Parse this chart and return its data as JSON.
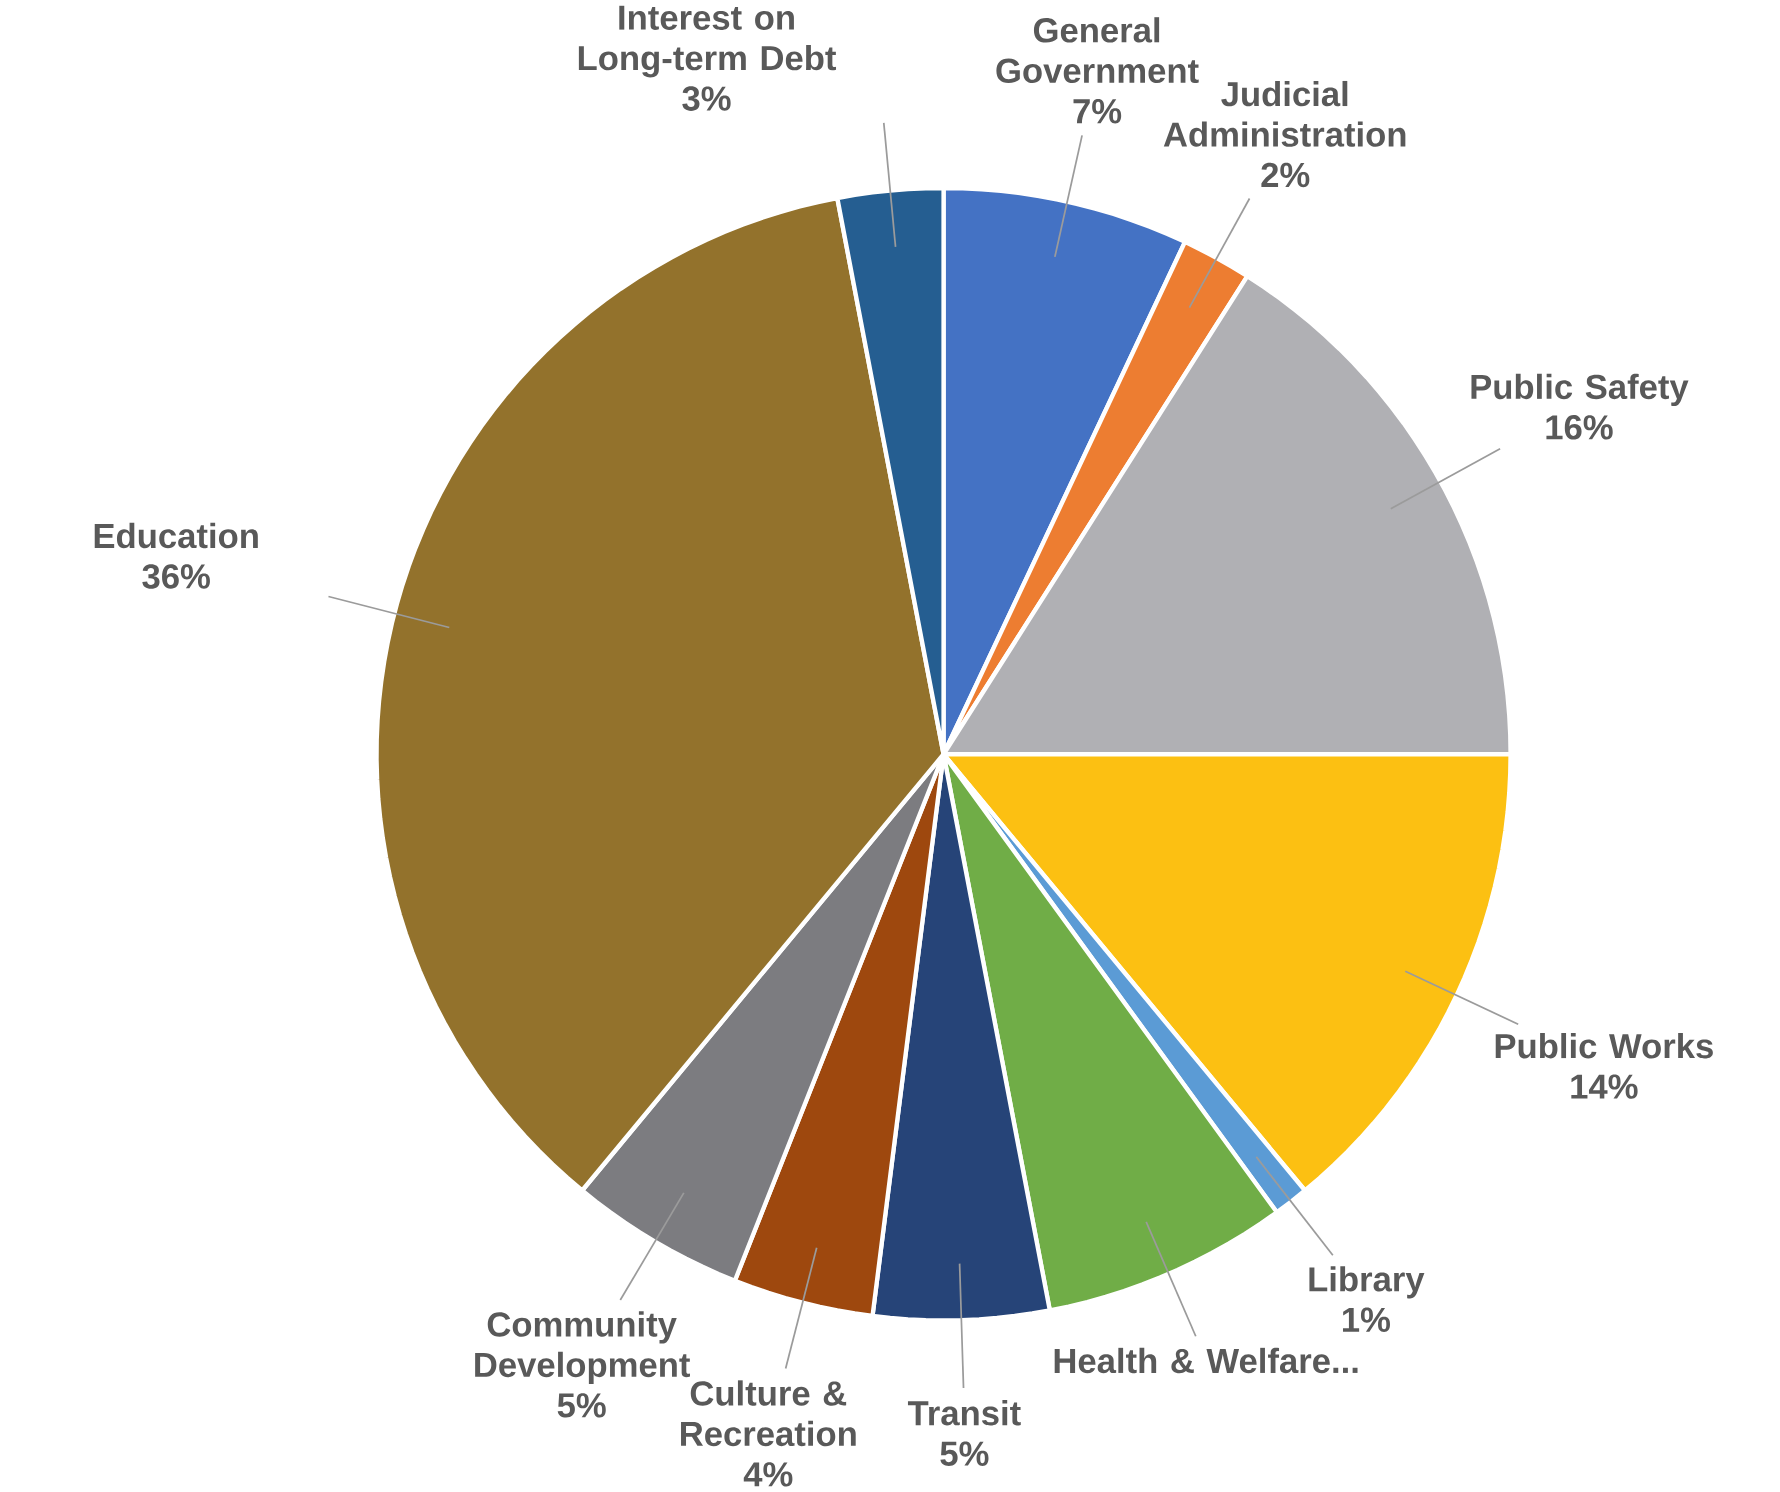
{
  "chart_data": {
    "type": "pie",
    "categories": [
      "General Government",
      "Judicial Administration",
      "Public Safety",
      "Public Works",
      "Library",
      "Health & Welfare...",
      "Transit",
      "Culture & Recreation",
      "Community Development",
      "Education",
      "Interest on Long-term Debt"
    ],
    "values": [
      7,
      2,
      16,
      14,
      1,
      7,
      5,
      4,
      5,
      36,
      3
    ],
    "value_labels": [
      "7%",
      "2%",
      "16%",
      "14%",
      "1%",
      null,
      "5%",
      "4%",
      "5%",
      "36%",
      "3%"
    ],
    "colors": [
      "#4472c4",
      "#ed7d31",
      "#b0b0b4",
      "#fcc012",
      "#5b9bd5",
      "#70ad47",
      "#264478",
      "#9e480e",
      "#7c7c80",
      "#93722c",
      "#255e91"
    ]
  }
}
